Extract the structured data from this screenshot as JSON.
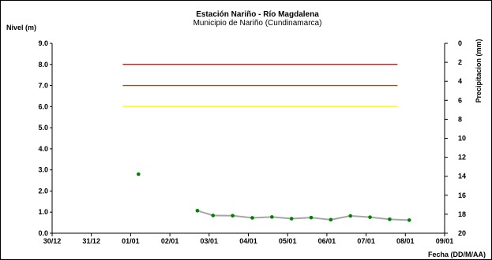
{
  "chart_data": {
    "type": "line",
    "title": "Estación Nariño - Río Magdalena",
    "subtitle": "Municipio de Nariño (Cundinamarca)",
    "ylabel": "Nivel (m)",
    "y2label": "Precipitacion (mm)",
    "xlabel": "Fecha (DD/M/AA)",
    "x_ticks": [
      "30/12",
      "31/12",
      "01/01",
      "02/01",
      "03/01",
      "04/01",
      "05/01",
      "06/01",
      "07/01",
      "08/01",
      "09/01"
    ],
    "y_ticks": [
      "0.0",
      "1.0",
      "2.0",
      "3.0",
      "4.0",
      "5.0",
      "6.0",
      "7.0",
      "8.0",
      "9.0"
    ],
    "y2_ticks": [
      "0",
      "2",
      "4",
      "6",
      "8",
      "10",
      "12",
      "14",
      "16",
      "18",
      "20"
    ],
    "ylim": [
      0,
      9
    ],
    "y2lim": [
      0,
      20
    ],
    "y2_inverted": true,
    "x_range_days": [
      0,
      10
    ],
    "grid": false,
    "reference_lines": [
      {
        "value": 8.0,
        "color": "#cc0000",
        "x_start_days": 1.8,
        "x_end_days": 8.8
      },
      {
        "value": 7.0,
        "color": "#8b5a2b",
        "x_start_days": 1.8,
        "x_end_days": 8.8
      },
      {
        "value": 6.0,
        "color": "#ffff00",
        "x_start_days": 1.8,
        "x_end_days": 8.8
      }
    ],
    "series": [
      {
        "line_color": "#a6a6a6",
        "marker_color": "#008000",
        "points": [
          {
            "x_days": 2.2,
            "y": 2.8,
            "connected": false
          },
          {
            "x_days": 3.7,
            "y": 1.07,
            "connected": true
          },
          {
            "x_days": 4.1,
            "y": 0.84,
            "connected": true
          },
          {
            "x_days": 4.6,
            "y": 0.83,
            "connected": true
          },
          {
            "x_days": 5.1,
            "y": 0.73,
            "connected": true
          },
          {
            "x_days": 5.6,
            "y": 0.77,
            "connected": true
          },
          {
            "x_days": 6.1,
            "y": 0.69,
            "connected": true
          },
          {
            "x_days": 6.6,
            "y": 0.74,
            "connected": true
          },
          {
            "x_days": 7.1,
            "y": 0.64,
            "connected": true
          },
          {
            "x_days": 7.6,
            "y": 0.82,
            "connected": true
          },
          {
            "x_days": 8.1,
            "y": 0.76,
            "connected": true
          },
          {
            "x_days": 8.6,
            "y": 0.66,
            "connected": true
          },
          {
            "x_days": 9.1,
            "y": 0.62,
            "connected": true
          }
        ]
      }
    ]
  }
}
